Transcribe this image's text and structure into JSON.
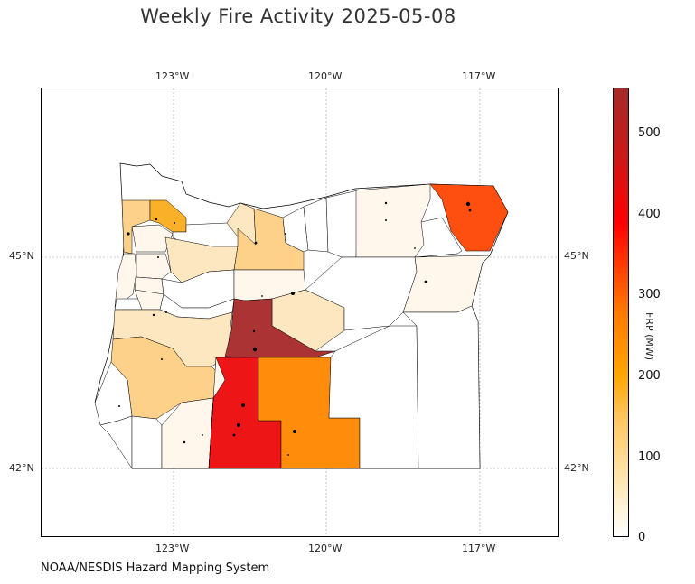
{
  "title": "Weekly Fire Activity 2025-05-08",
  "source": "NOAA/NESDIS Hazard Mapping System",
  "axes": {
    "lon_ticks": [
      "123°W",
      "120°W",
      "117°W"
    ],
    "lat_ticks": [
      "45°N",
      "42°N"
    ]
  },
  "colorbar": {
    "label": "FRP (MW)",
    "min": 0,
    "max": 550,
    "ticks": [
      "0",
      "100",
      "200",
      "300",
      "400",
      "500"
    ],
    "colors": [
      "#ffffff",
      "#ffe3a8",
      "#ffa500",
      "#ff7a00",
      "#ff0000",
      "#a52a2a"
    ]
  },
  "map": {
    "region": "Oregon",
    "layer": "county FRP choropleth",
    "colors": {
      "frp_0": "#ffffff",
      "frp_10": "#fff7ec",
      "frp_40": "#fde7c0",
      "frp_100": "#fdd18a",
      "frp_150": "#fbb02a",
      "frp_220": "#ff8c0a",
      "frp_330": "#ff4f10",
      "frp_420": "#ed1515",
      "frp_550": "#ab3333"
    }
  }
}
